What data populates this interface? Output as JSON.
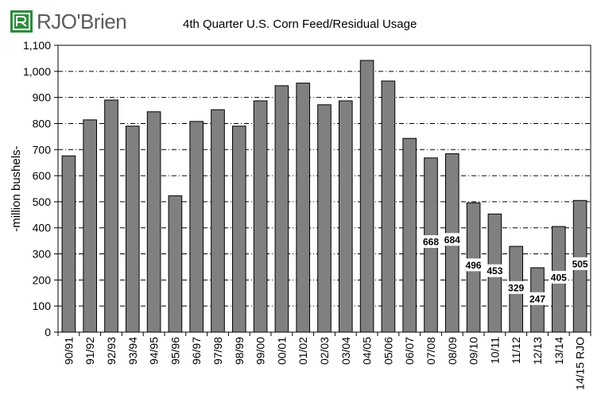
{
  "logo": {
    "text": "RJO'Brien",
    "icon": "rjo-square-logo-icon"
  },
  "chart_data": {
    "type": "bar",
    "title": "4th Quarter U.S. Corn Feed/Residual  Usage",
    "xlabel": "",
    "ylabel": "-million bushels-",
    "ylim": [
      0,
      1100
    ],
    "yticks": [
      0,
      100,
      200,
      300,
      400,
      500,
      600,
      700,
      800,
      900,
      1000,
      1100
    ],
    "ytick_labels": [
      "0",
      "100",
      "200",
      "300",
      "400",
      "500",
      "600",
      "700",
      "800",
      "900",
      "1,000",
      "1,100"
    ],
    "grid": "horizontal dash-dot",
    "categories": [
      "90/91",
      "91/92",
      "92/93",
      "93/94",
      "94/95",
      "95/96",
      "96/97",
      "97/98",
      "98/99",
      "99/00",
      "00/01",
      "01/02",
      "02/03",
      "03/04",
      "04/05",
      "05/06",
      "06/07",
      "07/08",
      "08/09",
      "09/10",
      "10/11",
      "11/12",
      "12/13",
      "13/14",
      "14/15 RJO"
    ],
    "values": [
      676,
      814,
      890,
      790,
      845,
      523,
      808,
      853,
      790,
      887,
      945,
      955,
      872,
      887,
      1042,
      963,
      743,
      668,
      684,
      496,
      453,
      329,
      247,
      405,
      505
    ],
    "data_labels": {
      "07/08": "668",
      "08/09": "684",
      "09/10": "496",
      "10/11": "453",
      "11/12": "329",
      "12/13": "247",
      "13/14": "405",
      "14/15 RJO": "505"
    },
    "colors": {
      "bar": "#808080",
      "bar_edge": "#000000",
      "grid": "#000000",
      "label_bg": "#ffffff"
    }
  }
}
